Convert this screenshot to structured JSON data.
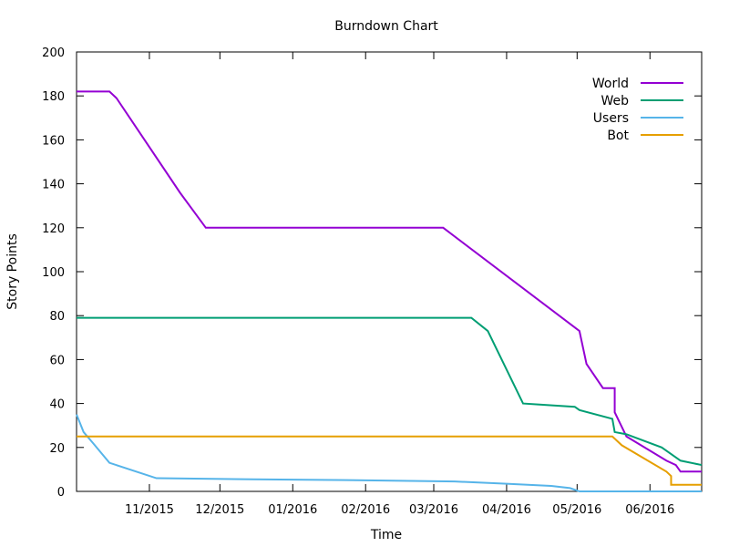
{
  "chart_data": {
    "type": "line",
    "title": "Burndown Chart",
    "xlabel": "Time",
    "ylabel": "Story Points",
    "xlim": [
      "2015-10-01",
      "2016-06-23"
    ],
    "ylim": [
      0,
      200
    ],
    "x_ticks": [
      {
        "date": "2015-11-01",
        "label": "11/2015"
      },
      {
        "date": "2015-12-01",
        "label": "12/2015"
      },
      {
        "date": "2016-01-01",
        "label": "01/2016"
      },
      {
        "date": "2016-02-01",
        "label": "02/2016"
      },
      {
        "date": "2016-03-01",
        "label": "03/2016"
      },
      {
        "date": "2016-04-01",
        "label": "04/2016"
      },
      {
        "date": "2016-05-01",
        "label": "05/2016"
      },
      {
        "date": "2016-06-01",
        "label": "06/2016"
      }
    ],
    "y_ticks": [
      0,
      20,
      40,
      60,
      80,
      100,
      120,
      140,
      160,
      180,
      200
    ],
    "grid": false,
    "legend_position": "top-right",
    "series": [
      {
        "name": "World",
        "color": "#9400d3",
        "points": [
          {
            "x": "2015-10-01",
            "y": 182
          },
          {
            "x": "2015-10-15",
            "y": 182
          },
          {
            "x": "2015-10-18",
            "y": 179
          },
          {
            "x": "2015-11-14",
            "y": 136
          },
          {
            "x": "2015-11-25",
            "y": 120
          },
          {
            "x": "2016-03-05",
            "y": 120
          },
          {
            "x": "2016-05-02",
            "y": 73
          },
          {
            "x": "2016-05-05",
            "y": 58
          },
          {
            "x": "2016-05-12",
            "y": 47
          },
          {
            "x": "2016-05-17",
            "y": 47
          },
          {
            "x": "2016-05-17",
            "y": 36
          },
          {
            "x": "2016-05-22",
            "y": 25
          },
          {
            "x": "2016-06-08",
            "y": 14
          },
          {
            "x": "2016-06-12",
            "y": 12
          },
          {
            "x": "2016-06-14",
            "y": 9
          },
          {
            "x": "2016-06-18",
            "y": 9
          },
          {
            "x": "2016-06-23",
            "y": 9
          }
        ]
      },
      {
        "name": "Web",
        "color": "#009e73",
        "points": [
          {
            "x": "2015-10-01",
            "y": 79
          },
          {
            "x": "2016-03-17",
            "y": 79
          },
          {
            "x": "2016-03-24",
            "y": 73
          },
          {
            "x": "2016-04-08",
            "y": 40
          },
          {
            "x": "2016-04-15",
            "y": 39.5
          },
          {
            "x": "2016-04-30",
            "y": 38.5
          },
          {
            "x": "2016-05-02",
            "y": 37
          },
          {
            "x": "2016-05-16",
            "y": 33
          },
          {
            "x": "2016-05-17",
            "y": 27
          },
          {
            "x": "2016-05-22",
            "y": 26
          },
          {
            "x": "2016-06-06",
            "y": 20
          },
          {
            "x": "2016-06-14",
            "y": 14
          },
          {
            "x": "2016-06-23",
            "y": 12
          }
        ]
      },
      {
        "name": "Users",
        "color": "#56b4e9",
        "points": [
          {
            "x": "2015-10-01",
            "y": 35
          },
          {
            "x": "2015-10-04",
            "y": 27
          },
          {
            "x": "2015-10-08",
            "y": 22
          },
          {
            "x": "2015-10-15",
            "y": 13
          },
          {
            "x": "2015-11-04",
            "y": 6
          },
          {
            "x": "2015-12-15",
            "y": 5.5
          },
          {
            "x": "2016-02-05",
            "y": 5
          },
          {
            "x": "2016-03-10",
            "y": 4.5
          },
          {
            "x": "2016-04-01",
            "y": 3.5
          },
          {
            "x": "2016-04-20",
            "y": 2.5
          },
          {
            "x": "2016-04-28",
            "y": 1.5
          },
          {
            "x": "2016-05-02",
            "y": 0
          },
          {
            "x": "2016-06-23",
            "y": 0
          }
        ]
      },
      {
        "name": "Bot",
        "color": "#e69f00",
        "points": [
          {
            "x": "2015-10-01",
            "y": 25
          },
          {
            "x": "2016-05-16",
            "y": 25
          },
          {
            "x": "2016-05-20",
            "y": 21
          },
          {
            "x": "2016-06-08",
            "y": 9
          },
          {
            "x": "2016-06-10",
            "y": 7
          },
          {
            "x": "2016-06-10",
            "y": 3
          },
          {
            "x": "2016-06-23",
            "y": 3
          }
        ]
      }
    ]
  }
}
